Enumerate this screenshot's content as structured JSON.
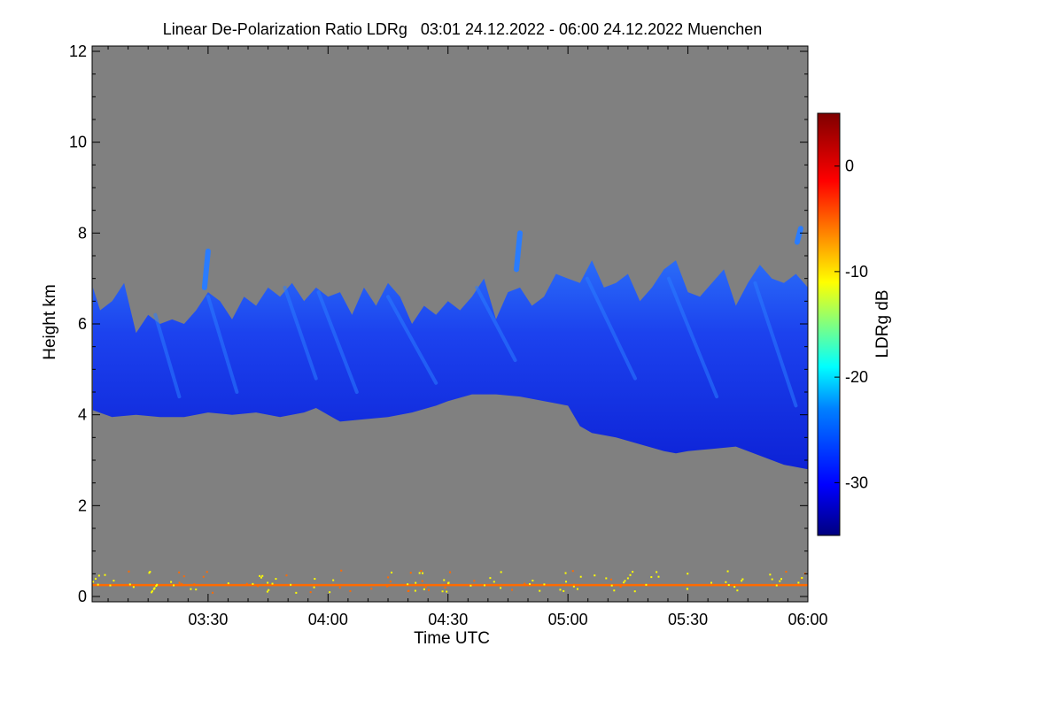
{
  "chart_data": {
    "type": "heatmap",
    "title": "Linear De-Polarization Ratio LDRg   03:01 24.12.2022 - 06:00 24.12.2022 Muenchen",
    "xlabel": "Time UTC",
    "ylabel": "Height km",
    "xlim_hours": [
      3.0167,
      6.0
    ],
    "ylim_km": [
      0,
      12
    ],
    "x_ticks": [
      {
        "value": 3.5,
        "label": "03:30"
      },
      {
        "value": 4.0,
        "label": "04:00"
      },
      {
        "value": 4.5,
        "label": "04:30"
      },
      {
        "value": 5.0,
        "label": "05:00"
      },
      {
        "value": 5.5,
        "label": "05:30"
      },
      {
        "value": 6.0,
        "label": "06:00"
      }
    ],
    "y_ticks": [
      {
        "value": 0,
        "label": "0"
      },
      {
        "value": 2,
        "label": "2"
      },
      {
        "value": 4,
        "label": "4"
      },
      {
        "value": 6,
        "label": "6"
      },
      {
        "value": 8,
        "label": "8"
      },
      {
        "value": 10,
        "label": "10"
      },
      {
        "value": 12,
        "label": "12"
      }
    ],
    "colorbar": {
      "label": "LDRg dB",
      "range": [
        -35,
        5
      ],
      "ticks": [
        {
          "value": 0,
          "label": "0"
        },
        {
          "value": -10,
          "label": "-10"
        },
        {
          "value": -20,
          "label": "-20"
        },
        {
          "value": -30,
          "label": "-30"
        }
      ]
    },
    "colors": {
      "no_signal": "#808080",
      "cloud_main": "#1a3cf0",
      "cloud_dark": "#0a1fd0",
      "cloud_light": "#2a7cff",
      "surface_layer": "#ff6a00",
      "speckle": "#ffff00"
    },
    "cloud_base_km": [
      [
        3.02,
        4.1
      ],
      [
        3.1,
        3.95
      ],
      [
        3.2,
        4.0
      ],
      [
        3.3,
        3.95
      ],
      [
        3.4,
        3.95
      ],
      [
        3.5,
        4.05
      ],
      [
        3.6,
        4.0
      ],
      [
        3.7,
        4.05
      ],
      [
        3.8,
        3.95
      ],
      [
        3.9,
        4.05
      ],
      [
        3.95,
        4.15
      ],
      [
        4.0,
        4.0
      ],
      [
        4.05,
        3.85
      ],
      [
        4.15,
        3.9
      ],
      [
        4.25,
        3.95
      ],
      [
        4.35,
        4.05
      ],
      [
        4.45,
        4.2
      ],
      [
        4.5,
        4.3
      ],
      [
        4.6,
        4.45
      ],
      [
        4.7,
        4.45
      ],
      [
        4.8,
        4.4
      ],
      [
        4.9,
        4.3
      ],
      [
        5.0,
        4.2
      ],
      [
        5.05,
        3.75
      ],
      [
        5.1,
        3.6
      ],
      [
        5.2,
        3.5
      ],
      [
        5.3,
        3.35
      ],
      [
        5.4,
        3.2
      ],
      [
        5.45,
        3.15
      ],
      [
        5.5,
        3.2
      ],
      [
        5.6,
        3.25
      ],
      [
        5.7,
        3.3
      ],
      [
        5.8,
        3.1
      ],
      [
        5.9,
        2.9
      ],
      [
        6.0,
        2.8
      ]
    ],
    "cloud_top_km": [
      [
        3.02,
        6.8
      ],
      [
        3.05,
        6.3
      ],
      [
        3.1,
        6.5
      ],
      [
        3.15,
        6.9
      ],
      [
        3.2,
        5.8
      ],
      [
        3.25,
        6.2
      ],
      [
        3.3,
        6.0
      ],
      [
        3.35,
        6.1
      ],
      [
        3.4,
        6.0
      ],
      [
        3.45,
        6.3
      ],
      [
        3.5,
        6.7
      ],
      [
        3.55,
        6.5
      ],
      [
        3.6,
        6.1
      ],
      [
        3.65,
        6.6
      ],
      [
        3.7,
        6.4
      ],
      [
        3.75,
        6.8
      ],
      [
        3.8,
        6.6
      ],
      [
        3.85,
        6.9
      ],
      [
        3.9,
        6.5
      ],
      [
        3.95,
        6.8
      ],
      [
        4.0,
        6.6
      ],
      [
        4.05,
        6.7
      ],
      [
        4.1,
        6.2
      ],
      [
        4.15,
        6.8
      ],
      [
        4.2,
        6.4
      ],
      [
        4.25,
        6.9
      ],
      [
        4.3,
        6.6
      ],
      [
        4.35,
        6.0
      ],
      [
        4.4,
        6.4
      ],
      [
        4.45,
        6.2
      ],
      [
        4.5,
        6.5
      ],
      [
        4.55,
        6.3
      ],
      [
        4.6,
        6.6
      ],
      [
        4.65,
        7.0
      ],
      [
        4.7,
        6.1
      ],
      [
        4.75,
        6.7
      ],
      [
        4.8,
        6.8
      ],
      [
        4.85,
        6.4
      ],
      [
        4.9,
        6.6
      ],
      [
        4.95,
        7.1
      ],
      [
        5.0,
        7.0
      ],
      [
        5.05,
        6.9
      ],
      [
        5.1,
        7.4
      ],
      [
        5.15,
        6.8
      ],
      [
        5.2,
        6.9
      ],
      [
        5.25,
        7.1
      ],
      [
        5.3,
        6.5
      ],
      [
        5.35,
        6.8
      ],
      [
        5.4,
        7.2
      ],
      [
        5.45,
        7.4
      ],
      [
        5.5,
        6.7
      ],
      [
        5.55,
        6.6
      ],
      [
        5.6,
        6.9
      ],
      [
        5.65,
        7.2
      ],
      [
        5.7,
        6.4
      ],
      [
        5.75,
        6.9
      ],
      [
        5.8,
        7.3
      ],
      [
        5.85,
        7.0
      ],
      [
        5.9,
        6.9
      ],
      [
        5.95,
        7.1
      ],
      [
        6.0,
        6.8
      ]
    ],
    "fall_streaks": [
      {
        "x_top": 3.28,
        "y_top": 6.2,
        "x_bot": 3.38,
        "y_bot": 4.4
      },
      {
        "x_top": 3.5,
        "y_top": 6.6,
        "x_bot": 3.62,
        "y_bot": 4.5
      },
      {
        "x_top": 3.82,
        "y_top": 6.8,
        "x_bot": 3.95,
        "y_bot": 4.8
      },
      {
        "x_top": 3.96,
        "y_top": 6.7,
        "x_bot": 4.12,
        "y_bot": 4.5
      },
      {
        "x_top": 4.25,
        "y_top": 6.6,
        "x_bot": 4.45,
        "y_bot": 4.7
      },
      {
        "x_top": 4.62,
        "y_top": 6.8,
        "x_bot": 4.78,
        "y_bot": 5.2
      },
      {
        "x_top": 5.08,
        "y_top": 7.0,
        "x_bot": 5.28,
        "y_bot": 4.8
      },
      {
        "x_top": 5.42,
        "y_top": 7.0,
        "x_bot": 5.62,
        "y_bot": 4.4
      },
      {
        "x_top": 5.78,
        "y_top": 6.9,
        "x_bot": 5.95,
        "y_bot": 4.2
      }
    ],
    "isolated_features": [
      {
        "x": 3.5,
        "y_top": 7.6,
        "y_bot": 6.8
      },
      {
        "x": 4.8,
        "y_top": 8.0,
        "y_bot": 7.2
      },
      {
        "x": 5.97,
        "y_top": 8.1,
        "y_bot": 7.8
      }
    ],
    "surface_layer_km": 0.25
  }
}
